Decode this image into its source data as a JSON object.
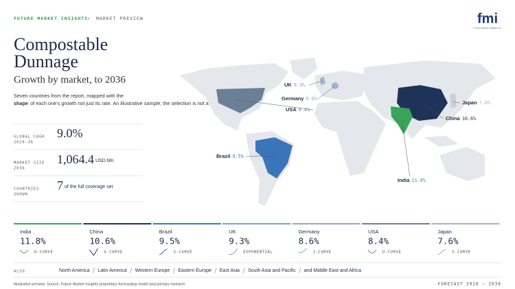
{
  "header": {
    "brand": "FUTURE MARKET INSIGHTS",
    "section": "MARKET PREVIEW",
    "logo": "fmi",
    "logo_sub": "Future Market Insights Inc."
  },
  "title": {
    "line1": "Compostable",
    "line2": "Dunnage",
    "subtitle": "Growth by market, to 2036",
    "description": [
      "Seven countries from the report, mapped with the",
      "shape",
      "of each one's growth not just its rate. An illustrative sample; the selection is not a ranking."
    ]
  },
  "stats": [
    {
      "label": [
        "GLOBAL CAGR",
        "2026-36"
      ],
      "value": "9.0%",
      "unit": ""
    },
    {
      "label": [
        "MARKET SIZE",
        "2036"
      ],
      "value": "1,064.4",
      "unit": "USD Mn"
    },
    {
      "label": [
        "COUNTRIES",
        "SHOWN"
      ],
      "value": "7",
      "unit": "of the full coverage set"
    }
  ],
  "map_labels": [
    {
      "name": "UK",
      "value": "9.3%"
    },
    {
      "name": "Germany",
      "value": "8.6%"
    },
    {
      "name": "USA",
      "value": "8.4%"
    },
    {
      "name": "Japan",
      "value": "7.6%"
    },
    {
      "name": "China",
      "value": "10.6%"
    },
    {
      "name": "Brazil",
      "value": "9.5%"
    },
    {
      "name": "India",
      "value": "11.8%"
    }
  ],
  "cards": [
    {
      "name": "India",
      "value": "11.8%",
      "curve": "U-CURVE"
    },
    {
      "name": "China",
      "value": "10.6%",
      "curve": "V-CURVE"
    },
    {
      "name": "Brazil",
      "value": "9.5%",
      "curve": "S-CURVE"
    },
    {
      "name": "UK",
      "value": "9.3%",
      "curve": "EXPONENTIAL"
    },
    {
      "name": "Germany",
      "value": "8.6%",
      "curve": "J-CURVE"
    },
    {
      "name": "USA",
      "value": "8.4%",
      "curve": "U-CURVE"
    },
    {
      "name": "Japan",
      "value": "7.6%",
      "curve": "S-CURVE"
    }
  ],
  "also": {
    "label": "ALSO",
    "items": [
      "North America",
      "Latin America",
      "Western Europe",
      "Eastern Europe",
      "East Asia",
      "South Asia and Pacific",
      "and Middle East and Africa"
    ]
  },
  "footer": {
    "source": "Illustrative preview. Source: Future Market Insights proprietary forecasting model and primary research.",
    "forecast": "FORECAST 2026 – 2036"
  }
}
